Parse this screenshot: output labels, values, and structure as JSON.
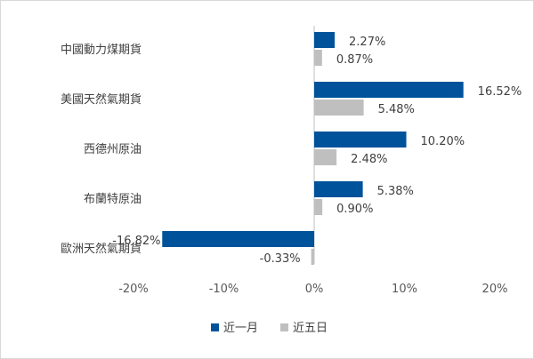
{
  "chart_data": {
    "type": "bar",
    "orientation": "horizontal",
    "categories": [
      "中國動力煤期貨",
      "美國天然氣期貨",
      "西德州原油",
      "布蘭特原油",
      "歐洲天然氣期貨"
    ],
    "series": [
      {
        "name": "近一月",
        "color": "#00529b",
        "values": [
          2.27,
          16.52,
          10.2,
          5.38,
          -16.82
        ],
        "labels": [
          "2.27%",
          "16.52%",
          "10.20%",
          "5.38%",
          "-16.82%"
        ]
      },
      {
        "name": "近五日",
        "color": "#bfbfbf",
        "values": [
          0.87,
          5.48,
          2.48,
          0.9,
          -0.33
        ],
        "labels": [
          "0.87%",
          "5.48%",
          "2.48%",
          "0.90%",
          "-0.33%"
        ]
      }
    ],
    "xlim": [
      -20,
      20
    ],
    "xticks": [
      -20,
      -10,
      0,
      10,
      20
    ],
    "xtick_labels": [
      "-20%",
      "-10%",
      "0%",
      "10%",
      "20%"
    ],
    "grid": false,
    "legend_position": "bottom"
  }
}
